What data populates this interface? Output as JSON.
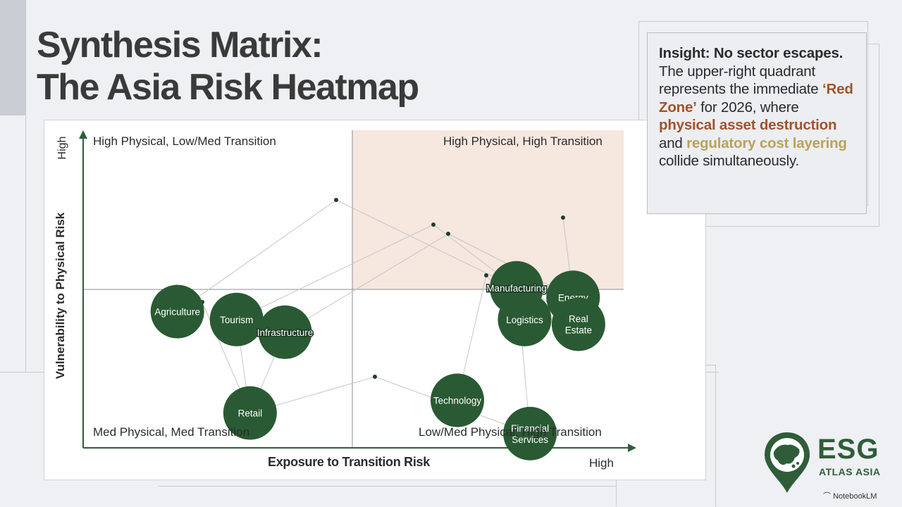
{
  "title": {
    "line1": "Synthesis Matrix:",
    "line2": "The Asia Risk Heatmap"
  },
  "axes": {
    "y_title": "Vulnerability to Physical Risk",
    "y_high": "High",
    "x_title": "Exposure to Transition Risk",
    "x_high": "High"
  },
  "quadrants": {
    "top_left": "High Physical, Low/Med Transition",
    "top_right": "High Physical, High Transition",
    "bottom_left": "Med Physical, Med Transition",
    "bottom_right": "Low/Med Physical, High Transition"
  },
  "nodes": [
    {
      "id": "agriculture",
      "label": "Agriculture",
      "transition": 0.35,
      "physical": 0.86
    },
    {
      "id": "tourism",
      "label": "Tourism",
      "transition": 0.57,
      "physical": 0.81
    },
    {
      "id": "infrastructure",
      "label": "Infrastructure",
      "transition": 0.75,
      "physical": 0.73
    },
    {
      "id": "manufacturing",
      "label": "Manufacturing",
      "transition": 1.61,
      "physical": 1.01
    },
    {
      "id": "energy",
      "label": "Energy",
      "transition": 1.82,
      "physical": 0.95
    },
    {
      "id": "logistics",
      "label": "Logistics",
      "transition": 1.64,
      "physical": 0.81
    },
    {
      "id": "real-estate",
      "label": "Real\nEstate",
      "transition": 1.84,
      "physical": 0.78
    },
    {
      "id": "retail",
      "label": "Retail",
      "transition": 0.62,
      "physical": 0.22
    },
    {
      "id": "technology",
      "label": "Technology",
      "transition": 1.39,
      "physical": 0.3
    },
    {
      "id": "financial-services",
      "label": "Financial\nServices",
      "transition": 1.66,
      "physical": 0.09
    }
  ],
  "insight": {
    "lead": "Insight: No sector escapes.",
    "text1": "The upper-right quadrant represents the immediate",
    "red_zone": "‘Red Zone’",
    "text2": "for 2026, where",
    "highlight1": "physical asset destruction",
    "text3": "and",
    "highlight2": "regulatory cost layering",
    "text4": "collide simultaneously."
  },
  "logo": {
    "name": "ESG",
    "sub": "ATLAS ASIA"
  },
  "attribution": "NotebookLM",
  "colors": {
    "node": "#2a5a33",
    "red_zone_fill": "#f6e7df",
    "highlight_red": "#a0532c",
    "highlight_gold": "#b9a35a",
    "axis": "#2f5d3a"
  }
}
